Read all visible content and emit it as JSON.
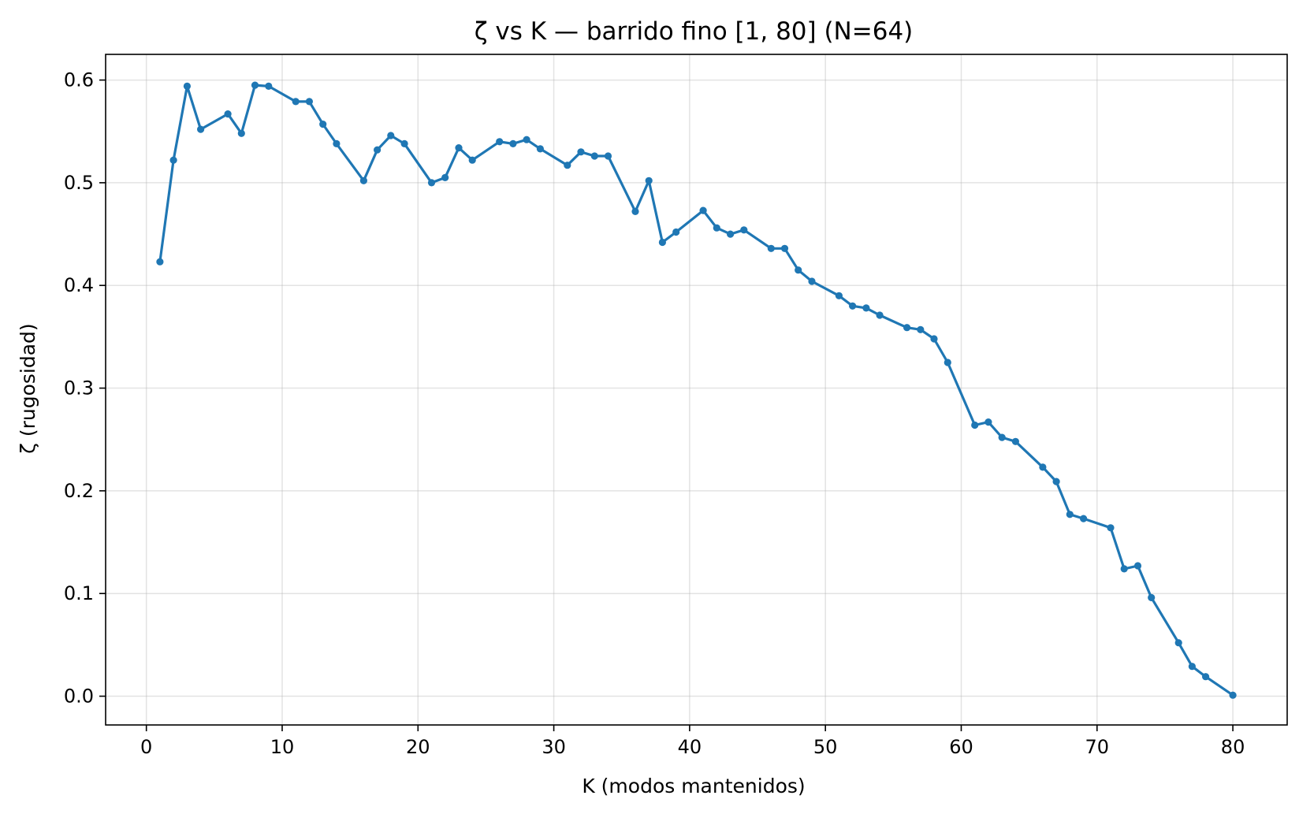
{
  "chart_data": {
    "type": "line",
    "title": "ζ vs K — barrido fino [1, 80] (N=64)",
    "xlabel": "K (modos mantenidos)",
    "ylabel": "ζ (rugosidad)",
    "xlim": [
      -3,
      84
    ],
    "ylim": [
      -0.028,
      0.625
    ],
    "xticks": [
      0,
      10,
      20,
      30,
      40,
      50,
      60,
      70,
      80
    ],
    "xtick_labels": [
      "0",
      "10",
      "20",
      "30",
      "40",
      "50",
      "60",
      "70",
      "80"
    ],
    "yticks": [
      0.0,
      0.1,
      0.2,
      0.3,
      0.4,
      0.5,
      0.6
    ],
    "ytick_labels": [
      "0.0",
      "0.1",
      "0.2",
      "0.3",
      "0.4",
      "0.5",
      "0.6"
    ],
    "grid": true,
    "legend": "none",
    "series": [
      {
        "color": "#1f77b4",
        "marker": "circle",
        "x": [
          1,
          2,
          3,
          4,
          6,
          7,
          8,
          9,
          11,
          12,
          13,
          14,
          16,
          17,
          18,
          19,
          21,
          22,
          23,
          24,
          26,
          27,
          28,
          29,
          31,
          32,
          33,
          34,
          36,
          37,
          38,
          39,
          41,
          42,
          43,
          44,
          46,
          47,
          48,
          49,
          51,
          52,
          53,
          54,
          56,
          57,
          58,
          59,
          61,
          62,
          63,
          64,
          66,
          67,
          68,
          69,
          71,
          72,
          73,
          74,
          76,
          77,
          78,
          80
        ],
        "y": [
          0.423,
          0.522,
          0.594,
          0.552,
          0.567,
          0.548,
          0.595,
          0.594,
          0.579,
          0.579,
          0.557,
          0.538,
          0.502,
          0.532,
          0.546,
          0.538,
          0.5,
          0.505,
          0.534,
          0.522,
          0.54,
          0.538,
          0.542,
          0.533,
          0.517,
          0.53,
          0.526,
          0.526,
          0.472,
          0.502,
          0.442,
          0.452,
          0.473,
          0.456,
          0.45,
          0.454,
          0.436,
          0.436,
          0.415,
          0.404,
          0.39,
          0.38,
          0.378,
          0.371,
          0.359,
          0.357,
          0.348,
          0.325,
          0.264,
          0.267,
          0.252,
          0.248,
          0.223,
          0.209,
          0.177,
          0.173,
          0.164,
          0.124,
          0.127,
          0.096,
          0.052,
          0.029,
          0.019,
          0.001
        ]
      }
    ]
  }
}
